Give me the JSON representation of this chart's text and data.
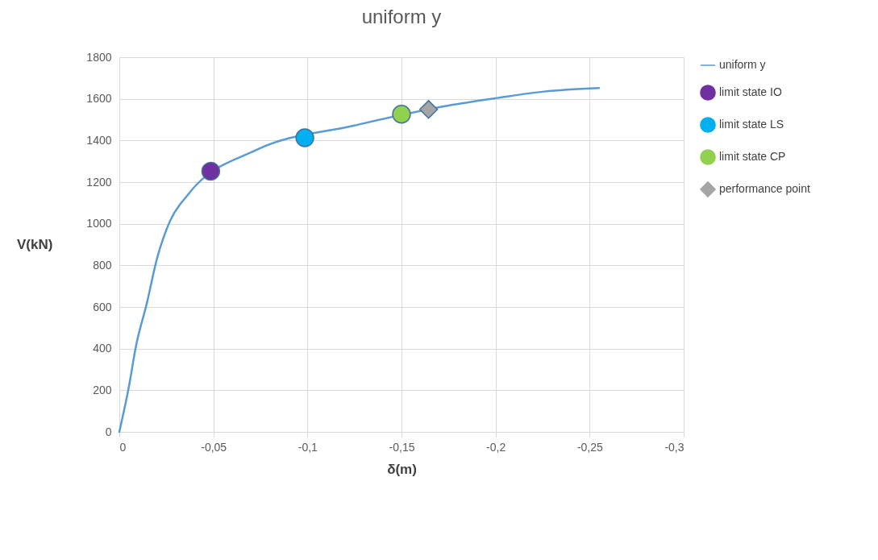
{
  "chart_data": {
    "type": "line",
    "title": "uniform y",
    "xlabel": "δ(m)",
    "ylabel": "V(kN)",
    "xlim": [
      0,
      -0.3
    ],
    "xticks": [
      0,
      {
        "value": -0.05,
        "label": "-0,05"
      },
      {
        "value": -0.1,
        "label": "-0,1"
      },
      {
        "value": -0.15,
        "label": "-0,15"
      },
      {
        "value": -0.2,
        "label": "-0,2"
      },
      {
        "value": -0.25,
        "label": "-0,25"
      },
      {
        "value": -0.3,
        "label": "-0,3"
      }
    ],
    "ylim": [
      0,
      1800
    ],
    "yticks": [
      0,
      200,
      400,
      600,
      800,
      1000,
      1200,
      1400,
      1600,
      1800
    ],
    "grid": true,
    "legend": "right",
    "series": [
      {
        "name": "uniform y",
        "color": "#5b9bd5",
        "x": [
          0,
          -0.005,
          -0.009,
          -0.0145,
          -0.02,
          -0.027,
          -0.0367,
          -0.073,
          -0.125,
          -0.175,
          -0.2008,
          -0.2258,
          -0.255
        ],
        "values": [
          0,
          213,
          419,
          613,
          832,
          1014,
          1142,
          1355,
          1472,
          1568,
          1604,
          1635,
          1652
        ]
      },
      {
        "name": "limit state IO",
        "type": "scatter",
        "marker": "circle",
        "color": "#7030a0",
        "x": [
          -0.0486
        ],
        "values": [
          1252
        ]
      },
      {
        "name": "limit state LS",
        "type": "scatter",
        "marker": "circle",
        "color": "#00b0f0",
        "x": [
          -0.0986
        ],
        "values": [
          1413
        ]
      },
      {
        "name": "limit state CP",
        "type": "scatter",
        "marker": "circle",
        "color": "#92d050",
        "x": [
          -0.15
        ],
        "values": [
          1526
        ]
      },
      {
        "name": "performance point",
        "type": "scatter",
        "marker": "diamond",
        "color": "#a5a5a5",
        "x": [
          -0.1644
        ],
        "values": [
          1549
        ]
      }
    ]
  }
}
